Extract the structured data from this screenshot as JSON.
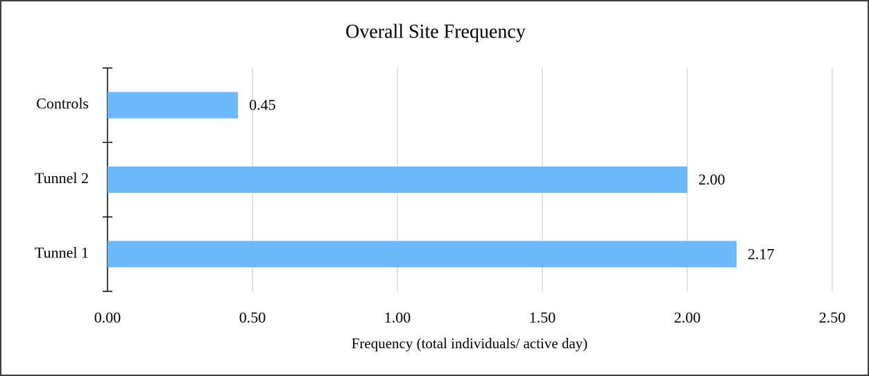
{
  "chart_data": {
    "type": "hbar",
    "title": "Overall Site Frequency",
    "categories": [
      "Controls",
      "Tunnel 2",
      "Tunnel 1"
    ],
    "values": [
      0.45,
      2.0,
      2.17
    ],
    "value_labels": [
      "0.45",
      "2.00",
      "2.17"
    ],
    "color": "#6bb8fb",
    "x_label": "Frequency (total individuals/ active day)",
    "xlim": [
      0,
      2.5
    ],
    "xticks": [
      {
        "value": 0,
        "label": "0.00"
      },
      {
        "value": 0.5,
        "label": "0.50"
      },
      {
        "value": 1,
        "label": "1.00"
      },
      {
        "value": 1.5,
        "label": "1.50"
      },
      {
        "value": 2,
        "label": "2.00"
      },
      {
        "value": 2.5,
        "label": "2.50"
      }
    ],
    "grid": true
  }
}
